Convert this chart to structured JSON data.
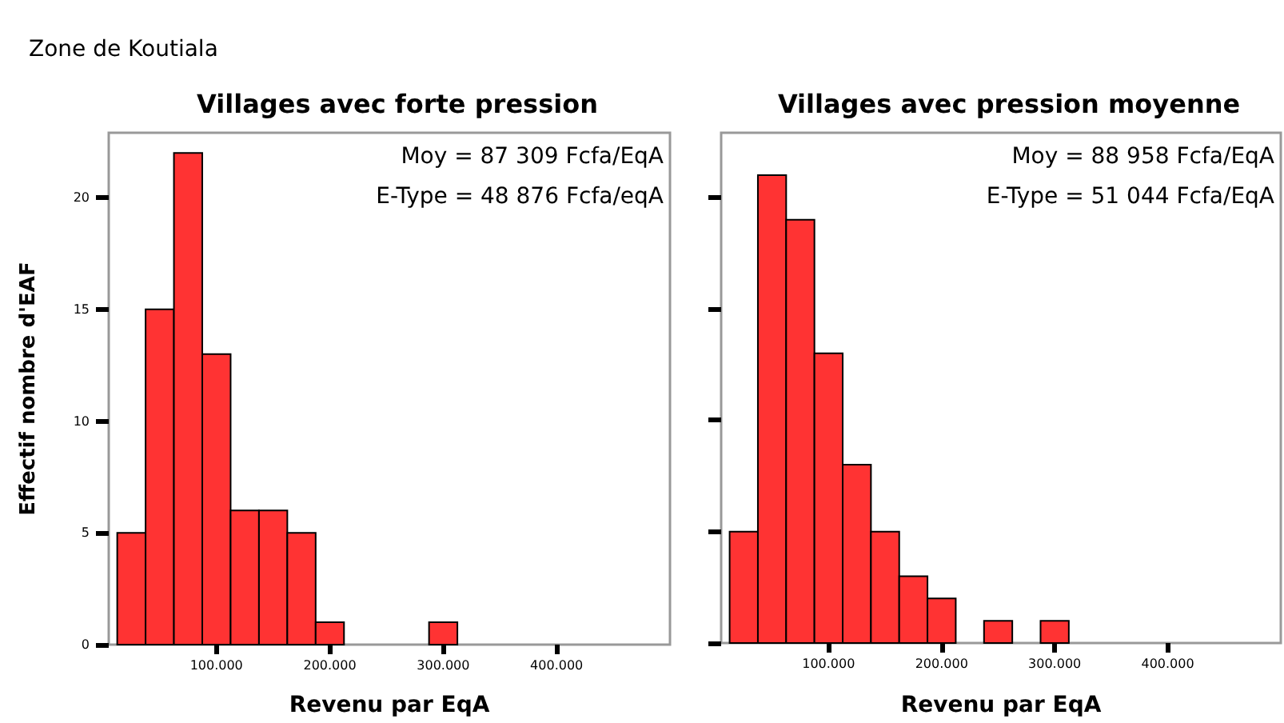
{
  "chart_data": [
    {
      "type": "histogram",
      "title": "Villages avec forte pression",
      "subtitle": "Zone de Koutiala",
      "xlabel": "Revenu par EqA",
      "ylabel": "Effectif nombre d'EAF",
      "bins": [
        12500,
        37500,
        62500,
        87500,
        112500,
        137500,
        162500,
        187500,
        212500,
        237500,
        262500,
        287500,
        312500
      ],
      "values": [
        5,
        15,
        22,
        13,
        6,
        6,
        5,
        1,
        0,
        0,
        0,
        1
      ],
      "color": "#ff3333",
      "xlim": [
        5000,
        500000
      ],
      "xticks": [
        {
          "value": 100000,
          "label": "100.000"
        },
        {
          "value": 200000,
          "label": "200.000"
        },
        {
          "value": 300000,
          "label": "300.000"
        },
        {
          "value": 400000,
          "label": "400.000"
        }
      ],
      "ylim": [
        0,
        22.9
      ],
      "yticks": [
        0,
        5,
        10,
        15,
        20
      ],
      "grid": false,
      "annotations": [
        "Moy = 87 309 Fcfa/EqA",
        "E-Type = 48 876 Fcfa/eqA"
      ]
    },
    {
      "type": "histogram",
      "title": "Villages avec pression moyenne",
      "xlabel": "Revenu par EqA",
      "bins": [
        12500,
        37500,
        62500,
        87500,
        112500,
        137500,
        162500,
        187500,
        212500,
        237500,
        262500,
        287500,
        312500
      ],
      "values": [
        5,
        21,
        19,
        13,
        8,
        5,
        3,
        2,
        0,
        1,
        0,
        1
      ],
      "color": "#ff3333",
      "xlim": [
        5000,
        500000
      ],
      "xticks": [
        {
          "value": 100000,
          "label": "100.000"
        },
        {
          "value": 200000,
          "label": "200.000"
        },
        {
          "value": 300000,
          "label": "300.000"
        },
        {
          "value": 400000,
          "label": "400.000"
        }
      ],
      "ylim": [
        0,
        22.9
      ],
      "yticks": [
        0,
        5,
        10,
        15,
        20
      ],
      "grid": false,
      "tick_labels": "x",
      "annotations": [
        "Moy = 88 958 Fcfa/EqA",
        "E-Type = 51 044 Fcfa/EqA"
      ]
    }
  ]
}
